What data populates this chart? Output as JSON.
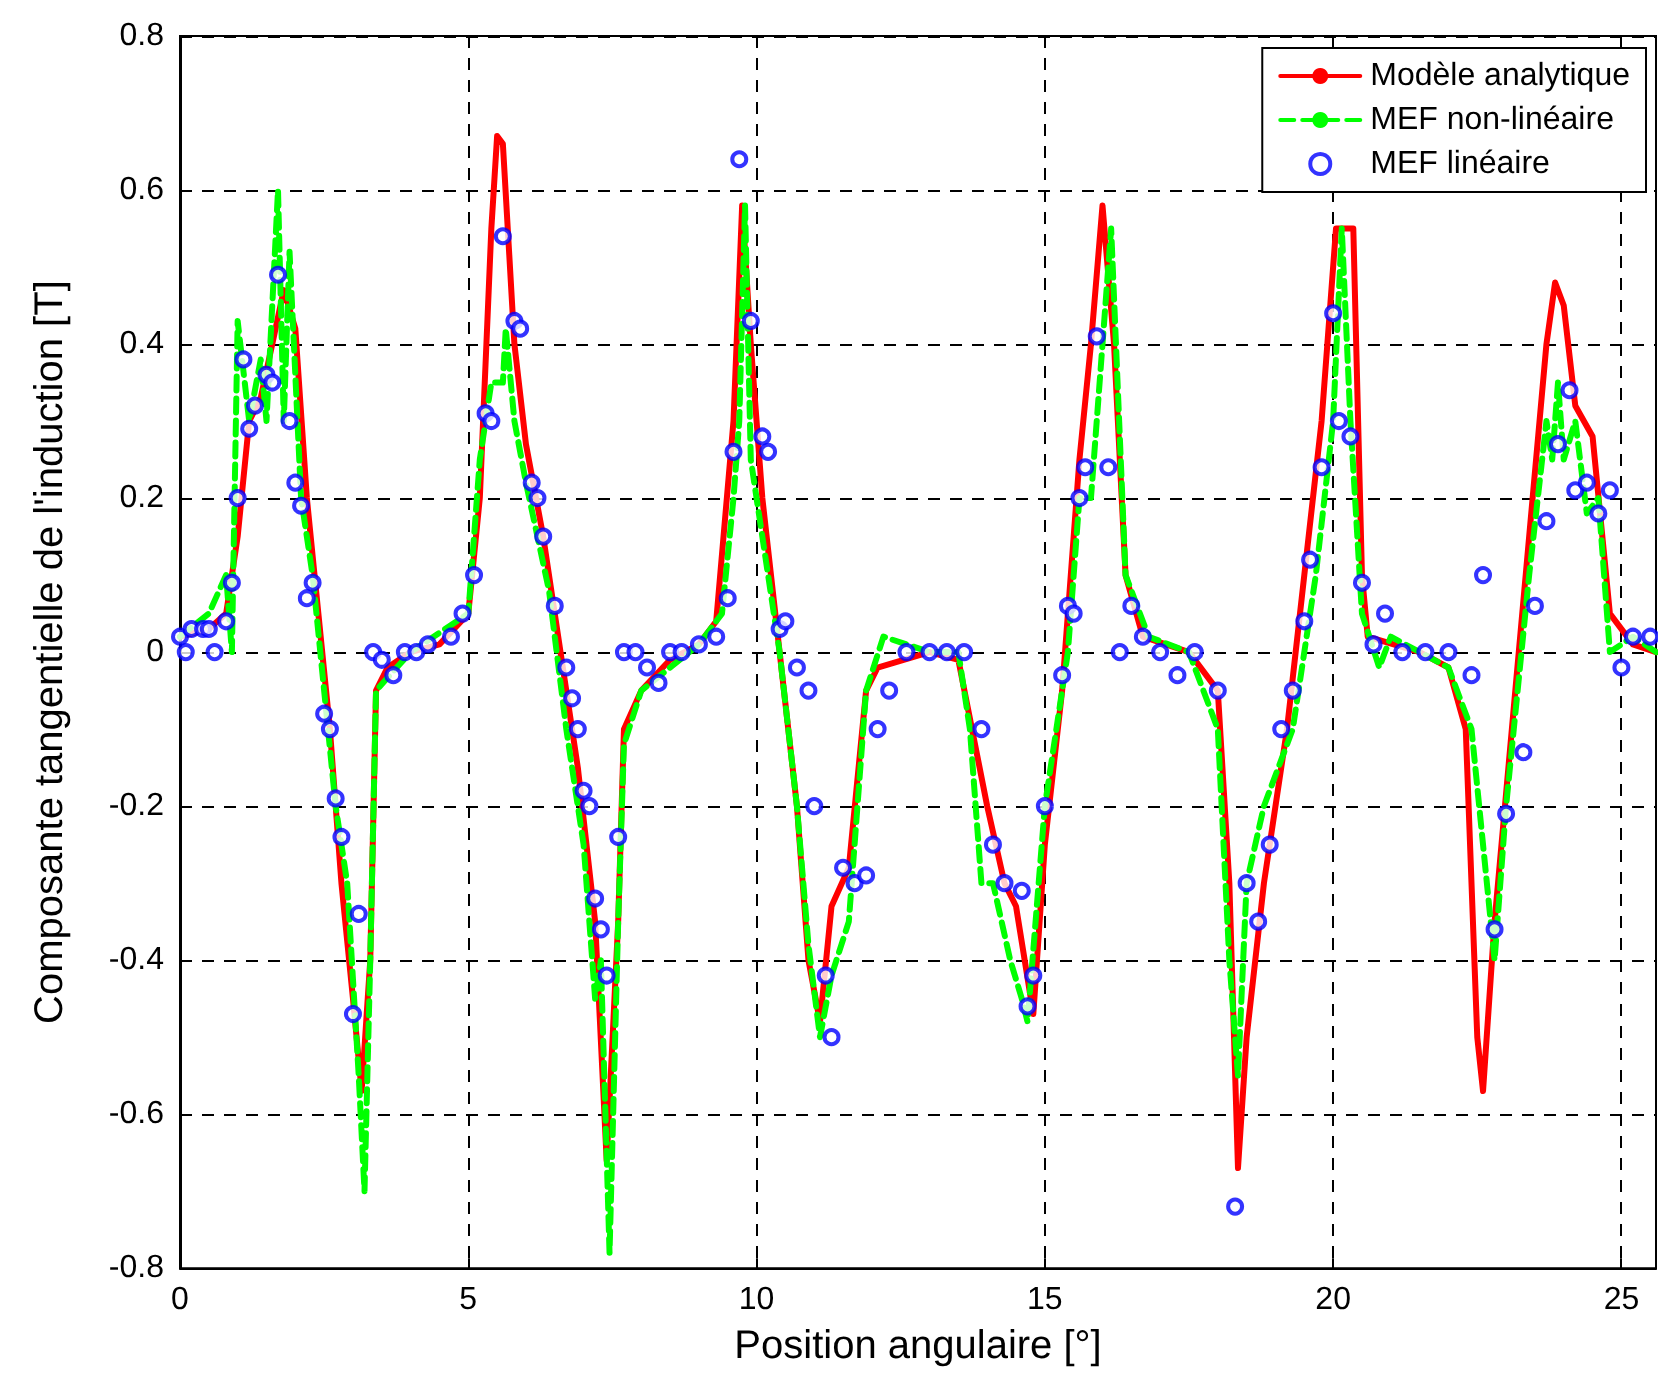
{
  "chart_data": {
    "type": "line",
    "xlabel": "Position angulaire [°]",
    "ylabel": "Composante tangentielle de l'induction [T]",
    "xlim": [
      0,
      25.6
    ],
    "xticks": [
      0,
      5,
      10,
      15,
      20,
      25
    ],
    "ylim": [
      -0.8,
      0.8
    ],
    "yticks": [
      -0.8,
      -0.6,
      -0.4,
      -0.2,
      0,
      0.2,
      0.4,
      0.6,
      0.8
    ],
    "grid": true,
    "legend": "top right",
    "series": [
      {
        "name": "Modèle analytique",
        "type": "line",
        "line_style": "solid",
        "color": "#ff0000",
        "x": [
          0,
          0.5,
          0.8,
          1.0,
          1.2,
          1.4,
          1.6,
          1.8,
          2.0,
          2.2,
          2.4,
          2.6,
          2.8,
          3.0,
          3.15,
          3.3,
          3.4,
          3.6,
          4.0,
          4.5,
          5.0,
          5.2,
          5.4,
          5.5,
          5.6,
          5.8,
          6.0,
          6.3,
          6.6,
          6.9,
          7.2,
          7.4,
          7.6,
          7.7,
          8.0,
          8.5,
          9.0,
          9.3,
          9.6,
          9.75,
          9.9,
          10.1,
          10.4,
          10.7,
          10.9,
          11.1,
          11.3,
          11.6,
          11.9,
          12.1,
          13,
          13.5,
          14,
          14.3,
          14.5,
          14.8,
          15,
          15.3,
          15.6,
          15.8,
          16.0,
          16.2,
          16.4,
          16.7,
          17.5,
          18.0,
          18.2,
          18.35,
          18.5,
          18.8,
          19.2,
          19.5,
          19.8,
          19.9,
          20.05,
          20.35,
          20.5,
          20.6,
          21.5,
          22.0,
          22.3,
          22.5,
          22.6,
          22.8,
          23.1,
          23.4,
          23.7,
          23.85,
          24.0,
          24.2,
          24.5,
          24.8,
          25.2,
          25.6
        ],
        "values": [
          0.02,
          0.03,
          0.05,
          0.15,
          0.3,
          0.33,
          0.4,
          0.47,
          0.42,
          0.2,
          0.05,
          -0.1,
          -0.3,
          -0.45,
          -0.57,
          -0.4,
          -0.05,
          -0.02,
          0,
          0.01,
          0.05,
          0.2,
          0.55,
          0.67,
          0.66,
          0.4,
          0.27,
          0.15,
          0,
          -0.15,
          -0.35,
          -0.66,
          -0.35,
          -0.1,
          -0.05,
          -0.01,
          0.01,
          0.04,
          0.3,
          0.58,
          0.4,
          0.2,
          0,
          -0.2,
          -0.4,
          -0.48,
          -0.33,
          -0.28,
          -0.05,
          -0.02,
          0,
          -0.01,
          -0.2,
          -0.3,
          -0.33,
          -0.47,
          -0.25,
          -0.05,
          0.25,
          0.4,
          0.58,
          0.4,
          0.1,
          0.02,
          0,
          -0.05,
          -0.3,
          -0.67,
          -0.5,
          -0.3,
          -0.1,
          0.1,
          0.3,
          0.4,
          0.55,
          0.55,
          0.1,
          0.02,
          0,
          -0.02,
          -0.1,
          -0.5,
          -0.57,
          -0.35,
          -0.1,
          0.15,
          0.4,
          0.48,
          0.45,
          0.32,
          0.28,
          0.05,
          0.01,
          0
        ]
      },
      {
        "name": "MEF non-linéaire",
        "type": "line",
        "line_style": "dashed",
        "color": "#00ff00",
        "x": [
          0,
          0.5,
          0.8,
          0.9,
          1.0,
          1.2,
          1.4,
          1.5,
          1.7,
          1.8,
          1.9,
          2.1,
          2.3,
          2.5,
          2.7,
          2.9,
          3.1,
          3.2,
          3.3,
          3.4,
          4,
          5,
          5.2,
          5.4,
          5.6,
          5.65,
          5.8,
          6.0,
          6.4,
          6.7,
          7.0,
          7.2,
          7.3,
          7.45,
          7.6,
          7.7,
          8,
          9,
          9.4,
          9.6,
          9.7,
          9.8,
          9.9,
          10.1,
          10.4,
          10.7,
          10.9,
          11.1,
          11.3,
          11.6,
          11.9,
          12.2,
          13,
          13.5,
          13.7,
          13.9,
          14.1,
          14.4,
          14.6,
          14.7,
          15.0,
          15.4,
          15.6,
          15.8,
          15.9,
          16.15,
          16.4,
          16.8,
          17.5,
          18.0,
          18.2,
          18.35,
          18.5,
          18.8,
          19.3,
          19.7,
          20.0,
          20.15,
          20.3,
          20.5,
          20.8,
          21.0,
          21.5,
          22.0,
          22.4,
          22.6,
          22.8,
          23.0,
          23.4,
          23.7,
          23.8,
          23.9,
          24.0,
          24.2,
          24.4,
          24.6,
          24.8,
          25.2,
          25.6
        ],
        "values": [
          0.02,
          0.05,
          0.1,
          0,
          0.43,
          0.3,
          0.38,
          0.3,
          0.6,
          0.3,
          0.52,
          0.2,
          0.1,
          -0.05,
          -0.2,
          -0.3,
          -0.55,
          -0.7,
          -0.4,
          -0.05,
          0,
          0.05,
          0.25,
          0.35,
          0.35,
          0.42,
          0.3,
          0.22,
          0.08,
          -0.1,
          -0.25,
          -0.45,
          -0.4,
          -0.78,
          -0.35,
          -0.12,
          -0.05,
          0.01,
          0.05,
          0.2,
          0.3,
          0.58,
          0.25,
          0.15,
          0,
          -0.2,
          -0.38,
          -0.5,
          -0.42,
          -0.35,
          -0.05,
          0.02,
          0,
          0,
          -0.1,
          -0.3,
          -0.3,
          -0.4,
          -0.45,
          -0.48,
          -0.2,
          0,
          0.2,
          0.2,
          0.3,
          0.55,
          0.1,
          0.02,
          0,
          -0.1,
          -0.4,
          -0.55,
          -0.3,
          -0.2,
          -0.1,
          0.1,
          0.3,
          0.55,
          0.3,
          0.05,
          -0.02,
          0.02,
          0,
          -0.02,
          -0.1,
          -0.25,
          -0.4,
          -0.2,
          0.1,
          0.3,
          0.25,
          0.35,
          0.25,
          0.3,
          0.18,
          0.2,
          0,
          0.02,
          0
        ]
      },
      {
        "name": "MEF linéaire",
        "type": "scatter",
        "marker": "circle",
        "color": "#0000ff",
        "x": [
          0,
          0.1,
          0.2,
          0.4,
          0.5,
          0.6,
          0.8,
          0.9,
          1.0,
          1.1,
          1.2,
          1.3,
          1.5,
          1.6,
          1.7,
          1.9,
          2.0,
          2.1,
          2.2,
          2.3,
          2.5,
          2.6,
          2.7,
          2.8,
          3.0,
          3.1,
          3.35,
          3.5,
          3.7,
          3.9,
          4.1,
          4.3,
          4.7,
          4.9,
          5.1,
          5.3,
          5.4,
          5.6,
          5.8,
          5.9,
          6.1,
          6.2,
          6.3,
          6.5,
          6.7,
          6.8,
          6.9,
          7.0,
          7.1,
          7.2,
          7.3,
          7.4,
          7.6,
          7.7,
          7.9,
          8.1,
          8.3,
          8.5,
          8.7,
          9.0,
          9.3,
          9.5,
          9.6,
          9.7,
          9.9,
          10.1,
          10.2,
          10.4,
          10.5,
          10.7,
          10.9,
          11.0,
          11.2,
          11.3,
          11.5,
          11.7,
          11.9,
          12.1,
          12.3,
          12.6,
          13.0,
          13.3,
          13.6,
          13.9,
          14.1,
          14.3,
          14.6,
          14.7,
          14.8,
          15.0,
          15.3,
          15.4,
          15.5,
          15.6,
          15.7,
          15.9,
          16.1,
          16.3,
          16.5,
          16.7,
          17.0,
          17.3,
          17.6,
          18.0,
          18.3,
          18.5,
          18.7,
          18.9,
          19.1,
          19.3,
          19.5,
          19.6,
          19.8,
          20.0,
          20.1,
          20.3,
          20.5,
          20.7,
          20.9,
          21.2,
          21.6,
          22.0,
          22.4,
          22.6,
          22.8,
          23.0,
          23.3,
          23.5,
          23.7,
          23.9,
          24.1,
          24.2,
          24.4,
          24.6,
          24.8,
          25.0,
          25.2,
          25.5
        ],
        "values": [
          0.02,
          0,
          0.03,
          0.03,
          0.03,
          0,
          0.04,
          0.09,
          0.2,
          0.38,
          0.29,
          0.32,
          0.36,
          0.35,
          0.49,
          0.3,
          0.22,
          0.19,
          0.07,
          0.09,
          -0.08,
          -0.1,
          -0.19,
          -0.24,
          -0.47,
          -0.34,
          0,
          -0.01,
          -0.03,
          0,
          0,
          0.01,
          0.02,
          0.05,
          0.1,
          0.31,
          0.3,
          0.54,
          0.43,
          0.42,
          0.22,
          0.2,
          0.15,
          0.06,
          -0.02,
          -0.06,
          -0.1,
          -0.18,
          -0.2,
          -0.32,
          -0.36,
          -0.42,
          -0.24,
          0,
          0,
          -0.02,
          -0.04,
          0,
          0,
          0.01,
          0.02,
          0.07,
          0.26,
          0.64,
          0.43,
          0.28,
          0.26,
          0.03,
          0.04,
          -0.02,
          -0.05,
          -0.2,
          -0.42,
          -0.5,
          -0.28,
          -0.3,
          -0.29,
          -0.1,
          -0.05,
          0,
          0,
          0,
          0,
          -0.1,
          -0.25,
          -0.3,
          -0.31,
          -0.46,
          -0.42,
          -0.2,
          -0.03,
          0.06,
          0.05,
          0.2,
          0.24,
          0.41,
          0.24,
          0,
          0.06,
          0.02,
          0,
          -0.03,
          0,
          -0.05,
          -0.72,
          -0.3,
          -0.35,
          -0.25,
          -0.1,
          -0.05,
          0.04,
          0.12,
          0.24,
          0.44,
          0.3,
          0.28,
          0.09,
          0.01,
          0.05,
          0,
          0,
          0,
          -0.03,
          0.1,
          -0.36,
          -0.21,
          -0.13,
          0.06,
          0.17,
          0.27,
          0.34,
          0.21,
          0.22,
          0.18,
          0.21,
          -0.02,
          0.02,
          0.02
        ]
      }
    ]
  }
}
